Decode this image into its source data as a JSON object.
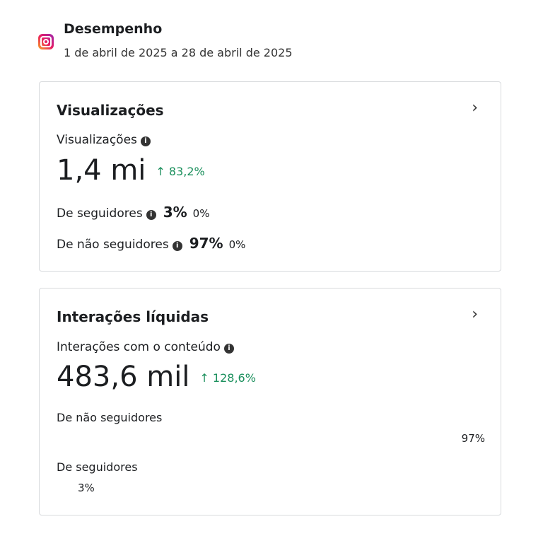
{
  "header": {
    "icon": "instagram-icon",
    "title": "Desempenho",
    "date_range": "1 de abril de 2025 a 28 de abril de 2025"
  },
  "views": {
    "title": "Visualizações",
    "metric_label": "Visualizações",
    "value": "1,4 mi",
    "change": "83,2%",
    "followers_label": "De seguidores",
    "followers_pct": "3%",
    "followers_change": "0%",
    "non_followers_label": "De não seguidores",
    "non_followers_pct": "97%",
    "non_followers_change": "0%"
  },
  "interactions": {
    "title": "Interações líquidas",
    "metric_label": "Interações com o conteúdo",
    "value": "483,6 mil",
    "change": "128,6%",
    "non_followers_label": "De não seguidores",
    "non_followers_pct": "97%",
    "followers_label": "De seguidores",
    "followers_pct": "3%"
  },
  "colors": {
    "positive": "#1a8f5c"
  }
}
